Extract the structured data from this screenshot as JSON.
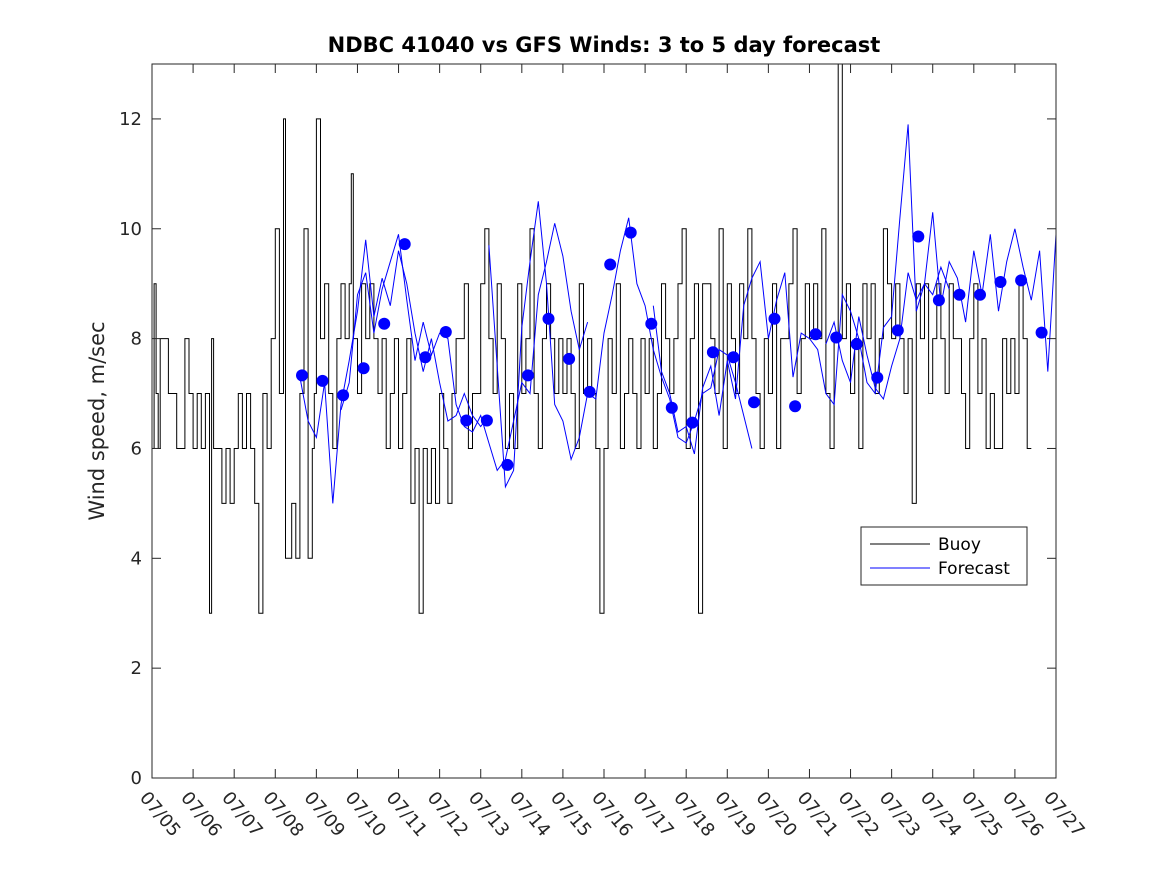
{
  "chart_data": {
    "type": "line",
    "title": "NDBC 41040 vs GFS Winds: 3 to 5 day forecast",
    "ylabel": "Wind speed, m/sec",
    "xlabel": "",
    "xlim": [
      0,
      22
    ],
    "ylim": [
      0,
      13
    ],
    "yticks": [
      0,
      2,
      4,
      6,
      8,
      10,
      12
    ],
    "xtick_labels": [
      "07/05",
      "07/06",
      "07/07",
      "07/08",
      "07/09",
      "07/10",
      "07/11",
      "07/12",
      "07/13",
      "07/14",
      "07/15",
      "07/16",
      "07/17",
      "07/18",
      "07/19",
      "07/20",
      "07/21",
      "07/22",
      "07/23",
      "07/24",
      "07/25",
      "07/26",
      "07/27"
    ],
    "legend": {
      "position": "lower-right",
      "entries": [
        "Buoy",
        "Forecast"
      ]
    },
    "grid": false,
    "colors": {
      "buoy": "#000000",
      "forecast": "#0000ff"
    },
    "buoy_series": {
      "name": "Buoy",
      "x": [
        0,
        0.05,
        0.1,
        0.15,
        0.2,
        0.3,
        0.4,
        0.5,
        0.6,
        0.7,
        0.8,
        0.9,
        1.0,
        1.1,
        1.2,
        1.3,
        1.4,
        1.45,
        1.5,
        1.6,
        1.7,
        1.8,
        1.9,
        2.0,
        2.1,
        2.2,
        2.3,
        2.4,
        2.5,
        2.6,
        2.7,
        2.8,
        2.9,
        3.0,
        3.1,
        3.2,
        3.25,
        3.3,
        3.4,
        3.5,
        3.6,
        3.7,
        3.8,
        3.9,
        3.95,
        4.0,
        4.1,
        4.2,
        4.3,
        4.4,
        4.5,
        4.6,
        4.7,
        4.8,
        4.85,
        4.9,
        5.0,
        5.1,
        5.2,
        5.3,
        5.4,
        5.5,
        5.6,
        5.7,
        5.8,
        5.9,
        6.0,
        6.1,
        6.2,
        6.3,
        6.4,
        6.5,
        6.6,
        6.7,
        6.8,
        6.9,
        7.0,
        7.1,
        7.2,
        7.3,
        7.4,
        7.5,
        7.6,
        7.7,
        7.8,
        7.9,
        8.0,
        8.1,
        8.2,
        8.3,
        8.4,
        8.5,
        8.6,
        8.7,
        8.8,
        8.9,
        9.0,
        9.1,
        9.2,
        9.3,
        9.4,
        9.5,
        9.6,
        9.7,
        9.8,
        9.9,
        10.0,
        10.1,
        10.2,
        10.3,
        10.4,
        10.5,
        10.6,
        10.7,
        10.8,
        10.9,
        11.0,
        11.1,
        11.2,
        11.3,
        11.4,
        11.5,
        11.6,
        11.7,
        11.8,
        11.9,
        12.0,
        12.1,
        12.2,
        12.3,
        12.4,
        12.5,
        12.6,
        12.7,
        12.8,
        12.9,
        13.0,
        13.1,
        13.2,
        13.3,
        13.4,
        13.5,
        13.6,
        13.7,
        13.8,
        13.9,
        14.0,
        14.1,
        14.2,
        14.3,
        14.4,
        14.5,
        14.6,
        14.7,
        14.8,
        14.9,
        15.0,
        15.1,
        15.2,
        15.3,
        15.4,
        15.5,
        15.6,
        15.7,
        15.8,
        15.9,
        16.0,
        16.1,
        16.2,
        16.3,
        16.4,
        16.5,
        16.6,
        16.7,
        16.8,
        16.9,
        17.0,
        17.1,
        17.2,
        17.3,
        17.4,
        17.5,
        17.6,
        17.7,
        17.8,
        17.9,
        18.0,
        18.1,
        18.2,
        18.3,
        18.4,
        18.5,
        18.6,
        18.7,
        18.8,
        18.9,
        19.0,
        19.1,
        19.2,
        19.3,
        19.4,
        19.5,
        19.6,
        19.7,
        19.8,
        19.9,
        20.0,
        20.1,
        20.2,
        20.3,
        20.4,
        20.5,
        20.6,
        20.7,
        20.8,
        20.9,
        21.0,
        21.1,
        21.2,
        21.3
      ],
      "y": [
        6,
        9,
        7,
        6,
        8,
        8,
        7,
        7,
        6,
        6,
        8,
        7,
        6,
        7,
        6,
        7,
        3,
        8,
        6,
        6,
        5,
        6,
        5,
        6,
        7,
        6,
        7,
        6,
        5,
        3,
        7,
        6,
        8,
        10,
        7,
        12,
        4,
        4,
        5,
        4,
        7,
        10,
        4,
        6,
        7,
        12,
        8,
        9,
        7,
        6,
        8,
        9,
        8,
        9,
        11,
        8,
        7,
        9,
        8,
        9,
        8,
        7,
        8,
        6,
        7,
        8,
        6,
        7,
        8,
        5,
        6,
        3,
        6,
        5,
        6,
        5,
        7,
        6,
        5,
        7,
        8,
        8,
        9,
        6,
        7,
        7,
        9,
        10,
        8,
        7,
        9,
        8,
        6,
        7,
        6,
        9,
        7,
        8,
        10,
        7,
        6,
        8,
        9,
        8,
        7,
        8,
        7,
        8,
        7,
        6,
        9,
        7,
        8,
        7,
        6,
        3,
        6,
        8,
        7,
        9,
        6,
        7,
        8,
        7,
        6,
        8,
        7,
        8,
        6,
        7,
        9,
        8,
        7,
        8,
        9,
        10,
        6,
        8,
        9,
        3,
        9,
        9,
        8,
        7,
        10,
        6,
        9,
        8,
        7,
        9,
        8,
        10,
        8,
        7,
        6,
        8,
        7,
        9,
        6,
        8,
        8,
        9,
        10,
        7,
        8,
        9,
        8,
        9,
        8,
        10,
        7,
        6,
        8,
        13,
        8,
        9,
        7,
        8,
        6,
        9,
        8,
        9,
        7,
        8,
        10,
        9,
        8,
        9,
        8,
        7,
        8,
        5,
        9,
        8,
        9,
        7,
        8,
        9,
        8,
        7,
        9,
        8,
        8,
        7,
        6,
        8,
        9,
        7,
        8,
        6,
        7,
        6,
        6,
        8,
        7,
        8,
        7,
        9,
        8,
        6
      ]
    },
    "forecast_points": {
      "name": "Forecast",
      "x": [
        3.65,
        4.15,
        4.65,
        5.15,
        5.65,
        6.15,
        6.65,
        7.15,
        7.65,
        8.15,
        8.65,
        9.15,
        9.65,
        10.15,
        10.65,
        11.15,
        11.65,
        12.15,
        12.65,
        13.15,
        13.65,
        14.15,
        14.65,
        15.15,
        15.65,
        16.15,
        16.65,
        17.15,
        17.65,
        18.15,
        18.65,
        19.15,
        19.65,
        20.15,
        20.65,
        21.15,
        21.65
      ],
      "y": [
        7.33,
        7.23,
        6.97,
        7.46,
        8.27,
        9.72,
        7.66,
        8.12,
        6.51,
        6.51,
        5.7,
        7.33,
        8.36,
        7.63,
        7.03,
        9.35,
        9.93,
        8.27,
        6.74,
        6.47,
        7.75,
        7.66,
        6.84,
        8.36,
        6.77,
        8.08,
        8.02,
        7.9,
        7.29,
        8.15,
        9.86,
        8.7,
        8.8,
        8.8,
        9.03,
        9.06,
        8.11
      ]
    },
    "forecast_runs": [
      {
        "x": [
          3.6,
          3.8,
          4.0,
          4.2,
          4.4,
          4.6,
          4.8,
          5.0,
          5.2,
          5.4,
          5.6,
          5.8,
          6.0,
          6.2,
          6.4,
          6.6,
          6.8,
          7.0,
          7.2,
          7.4,
          7.6,
          7.8,
          8.0,
          8.2
        ],
        "y": [
          7.3,
          6.5,
          6.2,
          7.2,
          5.0,
          6.8,
          7.6,
          8.5,
          9.8,
          8.4,
          9.1,
          8.6,
          9.6,
          9.0,
          8.1,
          7.4,
          8.0,
          7.2,
          6.5,
          6.6,
          7.0,
          6.6,
          6.4,
          6.6
        ]
      },
      {
        "x": [
          4.6,
          4.8,
          5.0,
          5.2,
          5.4,
          5.6,
          5.8,
          6.0,
          6.2,
          6.4,
          6.6,
          6.8,
          7.0,
          7.2,
          7.4,
          7.6,
          7.8,
          8.0,
          8.2,
          8.4,
          8.6,
          8.8,
          9.0,
          9.2,
          9.4,
          9.6,
          9.8,
          10.0,
          10.2,
          10.4,
          10.6
        ],
        "y": [
          6.7,
          7.2,
          8.8,
          9.2,
          8.1,
          8.9,
          9.4,
          9.9,
          8.7,
          7.6,
          8.3,
          7.7,
          8.1,
          8.0,
          6.8,
          6.4,
          6.3,
          6.6,
          6.1,
          5.6,
          5.8,
          6.5,
          7.2,
          7.0,
          8.8,
          9.4,
          10.1,
          9.5,
          8.5,
          7.8,
          8.3
        ]
      },
      {
        "x": [
          8.2,
          8.4,
          8.6,
          8.8,
          9.0,
          9.2,
          9.4,
          9.6,
          9.8,
          10.0,
          10.2,
          10.4,
          10.6,
          10.8,
          11.0,
          11.2,
          11.4,
          11.6,
          11.8,
          12.0,
          12.2,
          12.4,
          12.6,
          12.8,
          13.0,
          13.2,
          13.4,
          13.6,
          13.8,
          14.0,
          14.2,
          14.4,
          14.6
        ],
        "y": [
          9.7,
          7.5,
          5.3,
          5.6,
          8.2,
          9.4,
          10.5,
          9.0,
          6.8,
          6.5,
          5.8,
          6.2,
          7.0,
          6.9,
          8.1,
          8.8,
          9.6,
          10.2,
          9.0,
          8.6,
          7.8,
          7.3,
          6.9,
          6.2,
          6.1,
          6.5,
          7.0,
          7.1,
          7.8,
          7.7,
          7.2,
          6.6,
          6.0
        ]
      },
      {
        "x": [
          12.2,
          12.4,
          12.6,
          12.8,
          13.0,
          13.2,
          13.4,
          13.6,
          13.8,
          14.0,
          14.2,
          14.4,
          14.6,
          14.8,
          15.0,
          15.2,
          15.4,
          15.6,
          15.8,
          16.0,
          16.2,
          16.4,
          16.6,
          16.8,
          17.0,
          17.2,
          17.4,
          17.6,
          17.8,
          18.0,
          18.2,
          18.4,
          18.6,
          18.8,
          19.0,
          19.2,
          19.4
        ],
        "y": [
          8.6,
          7.4,
          7.0,
          6.3,
          6.4,
          5.9,
          7.1,
          7.5,
          6.6,
          7.6,
          6.9,
          8.6,
          9.1,
          9.4,
          8.0,
          8.7,
          9.2,
          7.3,
          8.1,
          8.0,
          7.8,
          7.0,
          6.8,
          8.8,
          8.5,
          8.0,
          7.2,
          7.0,
          8.2,
          8.4,
          10.2,
          11.9,
          8.5,
          9.0,
          8.8,
          9.3,
          8.9
        ]
      },
      {
        "x": [
          16.4,
          16.6,
          16.8,
          17.0,
          17.2,
          17.4,
          17.6,
          17.8,
          18.0,
          18.2,
          18.4,
          18.6,
          18.8,
          19.0,
          19.2,
          19.4,
          19.6,
          19.8,
          20.0,
          20.2,
          20.4,
          20.6,
          20.8,
          21.0,
          21.2,
          21.4,
          21.6,
          21.8,
          22.0
        ],
        "y": [
          7.9,
          8.3,
          7.6,
          7.2,
          8.4,
          7.7,
          7.1,
          6.9,
          7.5,
          8.0,
          9.2,
          8.7,
          9.0,
          10.3,
          8.6,
          9.4,
          9.1,
          8.3,
          9.6,
          8.8,
          9.9,
          8.5,
          9.4,
          10.0,
          9.3,
          8.7,
          9.6,
          7.4,
          9.9
        ]
      }
    ]
  }
}
